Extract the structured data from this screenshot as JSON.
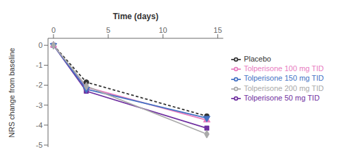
{
  "chart_data": {
    "type": "line",
    "x": [
      0,
      3,
      14
    ],
    "series": [
      {
        "name": "Placebo",
        "color": "#333333",
        "values": [
          0,
          -1.85,
          -3.55
        ],
        "marker": "circle",
        "line_style": "dashed"
      },
      {
        "name": "Tolperisone 50 mg TID",
        "color": "#7030a0",
        "values": [
          0,
          -2.3,
          -4.15
        ],
        "marker": "square",
        "line_style": "solid"
      },
      {
        "name": "Tolperisone 100 mg TID",
        "color": "#e87cbf",
        "values": [
          0,
          -2.1,
          -3.75
        ],
        "marker": "triangle-up",
        "line_style": "solid"
      },
      {
        "name": "Tolperisone 150 mg TID",
        "color": "#4472c4",
        "values": [
          0,
          -2.2,
          -3.65
        ],
        "marker": "triangle-down",
        "line_style": "solid"
      },
      {
        "name": "Tolperisone 200 mg TID",
        "color": "#aaaaaa",
        "values": [
          0,
          -2.05,
          -4.45
        ],
        "marker": "diamond",
        "line_style": "solid"
      }
    ],
    "x_label": "Time (days)",
    "y_label": "NRS change from baseline",
    "xlim": [
      -0.5,
      15.5
    ],
    "ylim": [
      -5.1,
      0.35
    ],
    "xticks": [
      0,
      5,
      10,
      15
    ],
    "yticks": [
      0,
      -1,
      -2,
      -3,
      -4,
      -5
    ],
    "grid": false,
    "legend": "right"
  }
}
